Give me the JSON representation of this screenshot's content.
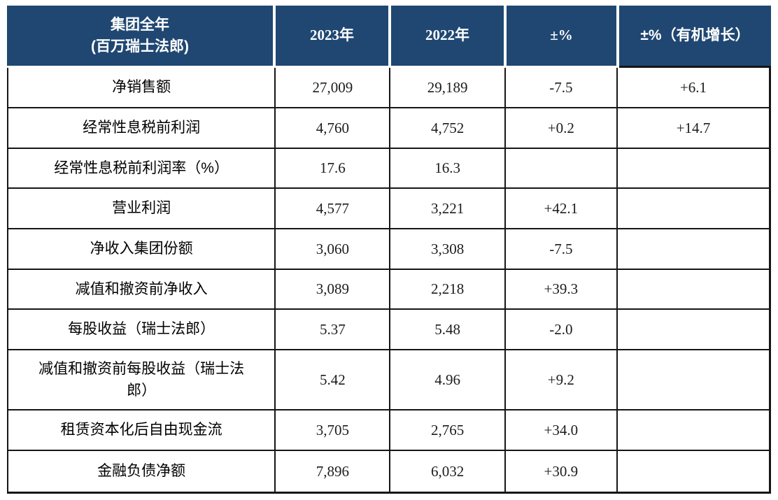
{
  "table": {
    "header": {
      "group_title_line1": "集团全年",
      "group_title_line2": "(百万瑞士法郎)",
      "col_2023": "2023年",
      "col_2022": "2022年",
      "col_pct": "±%",
      "col_organic": "±%（有机增长）"
    },
    "rows": [
      {
        "label": "净销售额",
        "v2023": "27,009",
        "v2022": "29,189",
        "pct": "-7.5",
        "organic": "+6.1"
      },
      {
        "label": "经常性息税前利润",
        "v2023": "4,760",
        "v2022": "4,752",
        "pct": "+0.2",
        "organic": "+14.7"
      },
      {
        "label": "经常性息税前利润率（%）",
        "v2023": "17.6",
        "v2022": "16.3",
        "pct": "",
        "organic": ""
      },
      {
        "label": "营业利润",
        "v2023": "4,577",
        "v2022": "3,221",
        "pct": "+42.1",
        "organic": ""
      },
      {
        "label": "净收入集团份额",
        "v2023": "3,060",
        "v2022": "3,308",
        "pct": "-7.5",
        "organic": ""
      },
      {
        "label": "减值和撤资前净收入",
        "v2023": "3,089",
        "v2022": "2,218",
        "pct": "+39.3",
        "organic": ""
      },
      {
        "label": "每股收益（瑞士法郎）",
        "v2023": "5.37",
        "v2022": "5.48",
        "pct": "-2.0",
        "organic": ""
      },
      {
        "label": "减值和撤资前每股收益（瑞士法郎）",
        "v2023": "5.42",
        "v2022": "4.96",
        "pct": "+9.2",
        "organic": ""
      },
      {
        "label": "租赁资本化后自由现金流",
        "v2023": "3,705",
        "v2022": "2,765",
        "pct": "+34.0",
        "organic": ""
      },
      {
        "label": "金融负债净额",
        "v2023": "7,896",
        "v2022": "6,032",
        "pct": "+30.9",
        "organic": ""
      }
    ],
    "colors": {
      "header_bg": "#1f4772",
      "border": "#161616",
      "header_text": "#ffffff"
    }
  }
}
